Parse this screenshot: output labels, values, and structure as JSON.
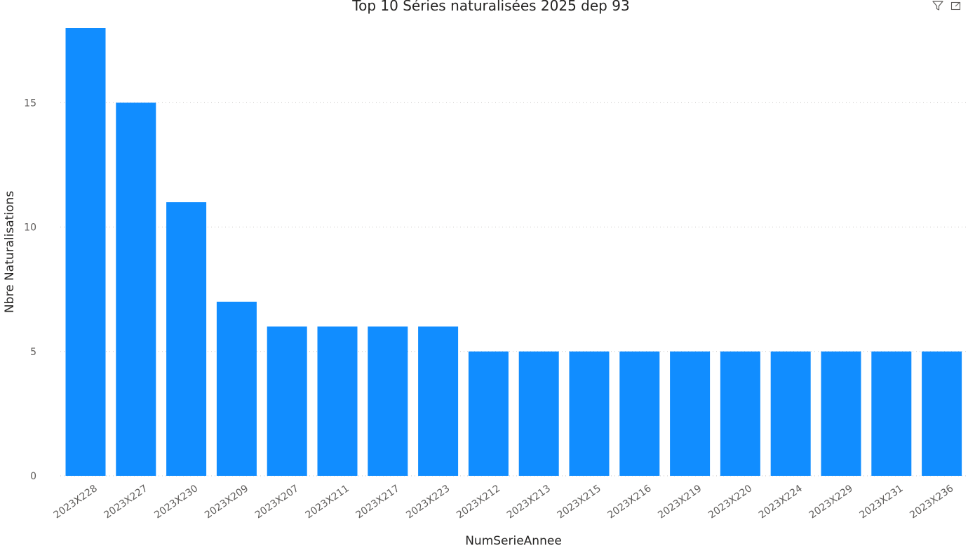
{
  "colors": {
    "bar": "#118dff",
    "title": "#252423",
    "tick": "#605e5c",
    "grid": "#c8c6c4",
    "icon": "#605e5c"
  },
  "header": {
    "filter_icon": "filter-icon",
    "focus_icon": "focus-mode-icon"
  },
  "chart_data": {
    "type": "bar",
    "title": "Top 10 Séries naturalisées 2025 dep 93",
    "xlabel": "NumSerieAnnee",
    "ylabel": "Nbre Naturalisations",
    "categories": [
      "2023X228",
      "2023X227",
      "2023X230",
      "2023X209",
      "2023X207",
      "2023X211",
      "2023X217",
      "2023X223",
      "2023X212",
      "2023X213",
      "2023X215",
      "2023X216",
      "2023X219",
      "2023X220",
      "2023X224",
      "2023X229",
      "2023X231",
      "2023X236"
    ],
    "values": [
      18,
      15,
      11,
      7,
      6,
      6,
      6,
      6,
      5,
      5,
      5,
      5,
      5,
      5,
      5,
      5,
      5,
      5
    ],
    "ylim": [
      0,
      18
    ],
    "yticks": [
      0,
      5,
      10,
      15
    ],
    "grid": true,
    "legend": "none"
  }
}
